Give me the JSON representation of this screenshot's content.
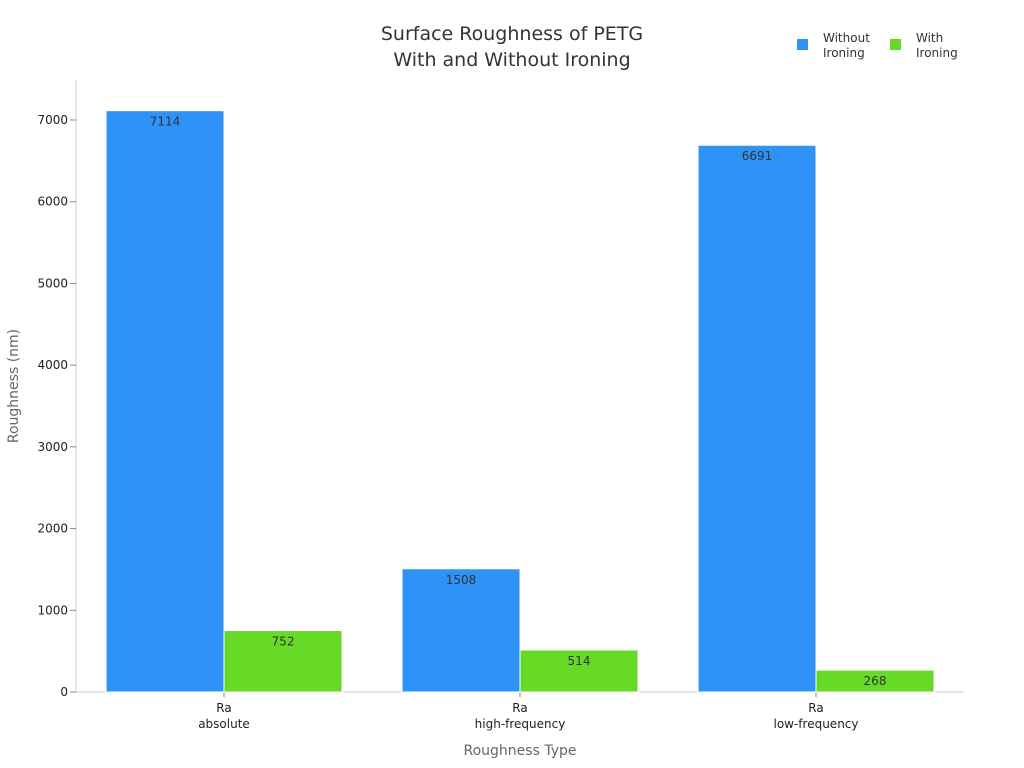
{
  "chart_data": {
    "type": "bar",
    "title": [
      "Surface Roughness of PETG",
      "With and Without Ironing"
    ],
    "xlabel": "Roughness Type",
    "ylabel": "Roughness (nm)",
    "categories": [
      [
        "Ra",
        "absolute"
      ],
      [
        "Ra",
        "high-frequency"
      ],
      [
        "Ra",
        "low-frequency"
      ]
    ],
    "series": [
      {
        "name": [
          "Without",
          "Ironing"
        ],
        "color": "#2e92f6",
        "values": [
          7114,
          1508,
          6691
        ]
      },
      {
        "name": [
          "With",
          "Ironing"
        ],
        "color": "#66da26",
        "values": [
          752,
          514,
          268
        ]
      }
    ],
    "ylim": [
      0,
      7500
    ],
    "yticks": [
      0,
      1000,
      2000,
      3000,
      4000,
      5000,
      6000,
      7000
    ],
    "grid": false,
    "legend": "top-right",
    "data_labels": true
  }
}
